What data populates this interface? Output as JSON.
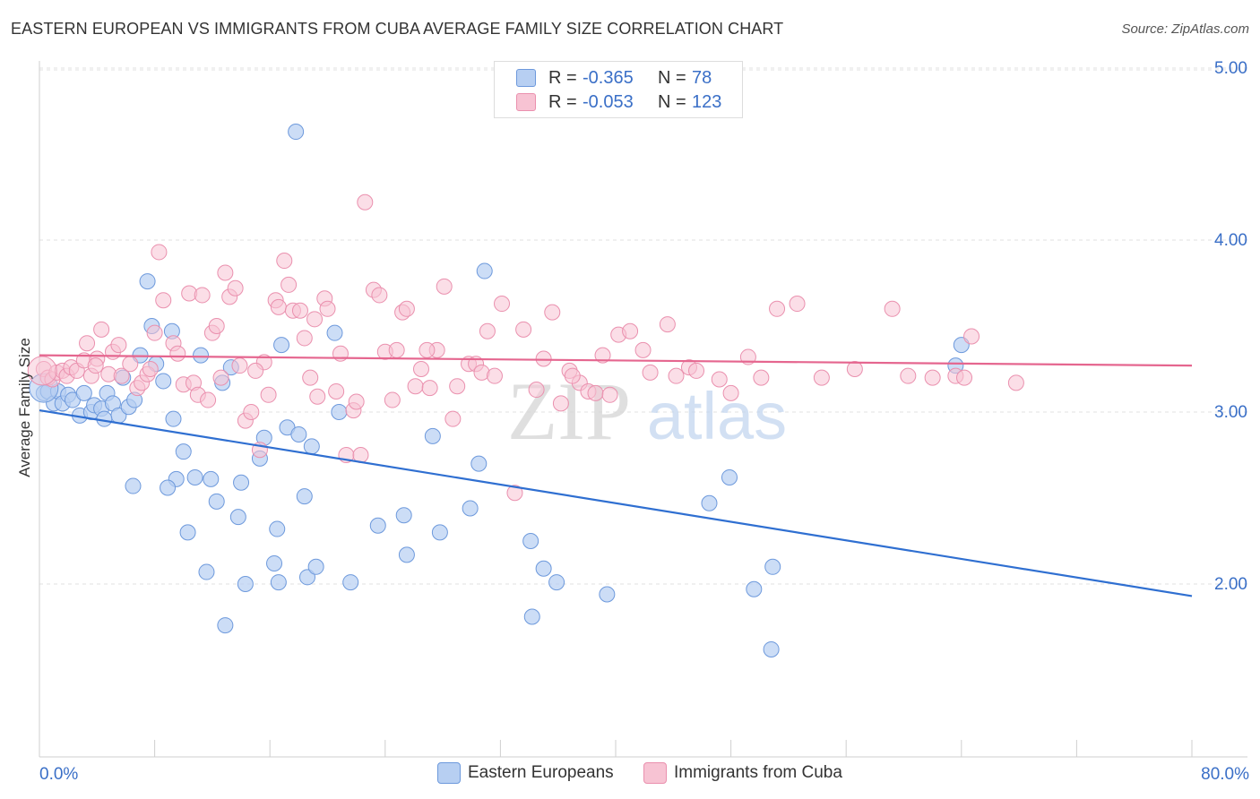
{
  "header": {
    "title": "EASTERN EUROPEAN VS IMMIGRANTS FROM CUBA AVERAGE FAMILY SIZE CORRELATION CHART",
    "source": "Source: ZipAtlas.com"
  },
  "watermark": {
    "zip": "ZIP",
    "atlas": "atlas"
  },
  "legend": {
    "rows": [
      {
        "r_label": "R =",
        "r_value": "-0.365",
        "n_label": "N =",
        "n_value": "78"
      },
      {
        "r_label": "R =",
        "r_value": "-0.053",
        "n_label": "N =",
        "n_value": "123"
      }
    ]
  },
  "bottom_legend": {
    "eastern": "Eastern Europeans",
    "cuba": "Immigrants from Cuba"
  },
  "chart_data": {
    "type": "scatter",
    "title": "EASTERN EUROPEAN VS IMMIGRANTS FROM CUBA AVERAGE FAMILY SIZE CORRELATION CHART",
    "ylabel": "Average Family Size",
    "xlim": [
      0,
      80
    ],
    "ylim": [
      1.0,
      5.1
    ],
    "x_tick_labels": [
      "0.0%",
      "80.0%"
    ],
    "y_ticks": [
      2.0,
      3.0,
      4.0,
      5.0
    ],
    "y_tick_labels": [
      "2.00",
      "3.00",
      "4.00",
      "5.00"
    ],
    "grid": true,
    "legend_position": "top-center",
    "colors": {
      "eastern_fill": "#b7cff2",
      "eastern_stroke": "#6d99dc",
      "eastern_line": "#2f6fd1",
      "cuba_fill": "#f7c3d3",
      "cuba_stroke": "#ea90ae",
      "cuba_line": "#e5668f",
      "tick_label": "#3a6fc7"
    },
    "series": [
      {
        "name": "Eastern Europeans",
        "r": -0.365,
        "n": 78,
        "trend": {
          "x": [
            0,
            80
          ],
          "y": [
            3.01,
            1.93
          ]
        },
        "points": [
          [
            0.3,
            3.11
          ],
          [
            0.6,
            3.12
          ],
          [
            1.0,
            3.05
          ],
          [
            1.3,
            3.12
          ],
          [
            1.6,
            3.05
          ],
          [
            2.0,
            3.1
          ],
          [
            2.3,
            3.07
          ],
          [
            2.8,
            2.98
          ],
          [
            3.1,
            3.11
          ],
          [
            3.6,
            3.0
          ],
          [
            3.8,
            3.04
          ],
          [
            4.3,
            3.02
          ],
          [
            4.7,
            3.11
          ],
          [
            5.1,
            3.05
          ],
          [
            5.5,
            2.98
          ],
          [
            5.8,
            3.2
          ],
          [
            6.2,
            3.03
          ],
          [
            6.6,
            3.07
          ],
          [
            7.0,
            3.33
          ],
          [
            7.5,
            3.76
          ],
          [
            7.8,
            3.5
          ],
          [
            8.1,
            3.28
          ],
          [
            8.6,
            3.18
          ],
          [
            9.2,
            3.47
          ],
          [
            9.5,
            2.61
          ],
          [
            10.0,
            2.77
          ],
          [
            10.3,
            2.3
          ],
          [
            10.8,
            2.62
          ],
          [
            11.2,
            3.33
          ],
          [
            11.6,
            2.07
          ],
          [
            11.9,
            2.61
          ],
          [
            12.3,
            2.48
          ],
          [
            12.7,
            3.17
          ],
          [
            12.9,
            1.76
          ],
          [
            13.3,
            3.26
          ],
          [
            13.8,
            2.39
          ],
          [
            14.0,
            2.59
          ],
          [
            14.3,
            2.0
          ],
          [
            15.3,
            2.73
          ],
          [
            15.6,
            2.85
          ],
          [
            16.3,
            2.12
          ],
          [
            16.6,
            2.01
          ],
          [
            16.8,
            3.39
          ],
          [
            17.2,
            2.91
          ],
          [
            17.8,
            4.63
          ],
          [
            18.0,
            2.87
          ],
          [
            18.6,
            2.04
          ],
          [
            18.9,
            2.8
          ],
          [
            19.2,
            2.1
          ],
          [
            20.5,
            3.46
          ],
          [
            20.8,
            3.0
          ],
          [
            21.6,
            2.01
          ],
          [
            23.5,
            2.34
          ],
          [
            25.3,
            2.4
          ],
          [
            25.5,
            2.17
          ],
          [
            27.3,
            2.86
          ],
          [
            27.8,
            2.3
          ],
          [
            29.9,
            2.44
          ],
          [
            30.5,
            2.7
          ],
          [
            30.9,
            3.82
          ],
          [
            34.1,
            2.25
          ],
          [
            34.2,
            1.81
          ],
          [
            35.0,
            2.09
          ],
          [
            35.9,
            2.01
          ],
          [
            39.4,
            1.94
          ],
          [
            46.5,
            2.47
          ],
          [
            47.9,
            2.62
          ],
          [
            49.6,
            1.97
          ],
          [
            50.8,
            1.62
          ],
          [
            50.9,
            2.1
          ],
          [
            63.6,
            3.27
          ],
          [
            64.0,
            3.39
          ],
          [
            6.5,
            2.57
          ],
          [
            8.9,
            2.56
          ],
          [
            16.5,
            2.32
          ],
          [
            18.4,
            2.51
          ],
          [
            4.5,
            2.96
          ],
          [
            9.3,
            2.96
          ]
        ]
      },
      {
        "name": "Immigrants from Cuba",
        "r": -0.053,
        "n": 123,
        "trend": {
          "x": [
            0,
            80
          ],
          "y": [
            3.33,
            3.27
          ]
        },
        "points": [
          [
            0.3,
            3.25
          ],
          [
            0.6,
            3.2
          ],
          [
            0.9,
            3.19
          ],
          [
            1.2,
            3.23
          ],
          [
            1.6,
            3.24
          ],
          [
            1.9,
            3.21
          ],
          [
            2.2,
            3.26
          ],
          [
            2.6,
            3.24
          ],
          [
            3.1,
            3.3
          ],
          [
            3.3,
            3.4
          ],
          [
            3.6,
            3.21
          ],
          [
            4.0,
            3.31
          ],
          [
            4.3,
            3.48
          ],
          [
            4.8,
            3.22
          ],
          [
            5.1,
            3.35
          ],
          [
            5.5,
            3.39
          ],
          [
            5.7,
            3.21
          ],
          [
            6.3,
            3.28
          ],
          [
            6.8,
            3.14
          ],
          [
            7.1,
            3.17
          ],
          [
            7.5,
            3.22
          ],
          [
            8.0,
            3.46
          ],
          [
            8.3,
            3.93
          ],
          [
            8.6,
            3.65
          ],
          [
            9.3,
            3.4
          ],
          [
            9.6,
            3.34
          ],
          [
            10.0,
            3.16
          ],
          [
            10.4,
            3.69
          ],
          [
            10.7,
            3.17
          ],
          [
            11.0,
            3.1
          ],
          [
            11.3,
            3.68
          ],
          [
            11.7,
            3.07
          ],
          [
            12.0,
            3.46
          ],
          [
            12.3,
            3.5
          ],
          [
            12.9,
            3.81
          ],
          [
            13.2,
            3.67
          ],
          [
            13.6,
            3.72
          ],
          [
            13.9,
            3.27
          ],
          [
            14.3,
            2.95
          ],
          [
            14.7,
            3.0
          ],
          [
            15.3,
            2.78
          ],
          [
            15.6,
            3.29
          ],
          [
            15.9,
            3.1
          ],
          [
            16.4,
            3.65
          ],
          [
            16.6,
            3.61
          ],
          [
            17.0,
            3.88
          ],
          [
            17.3,
            3.74
          ],
          [
            17.6,
            3.59
          ],
          [
            18.1,
            3.59
          ],
          [
            18.4,
            3.43
          ],
          [
            18.8,
            3.2
          ],
          [
            19.1,
            3.54
          ],
          [
            19.3,
            3.09
          ],
          [
            19.8,
            3.66
          ],
          [
            20.0,
            3.6
          ],
          [
            20.6,
            3.12
          ],
          [
            20.9,
            3.34
          ],
          [
            21.3,
            2.75
          ],
          [
            21.8,
            3.01
          ],
          [
            22.3,
            2.75
          ],
          [
            22.6,
            4.22
          ],
          [
            23.2,
            3.71
          ],
          [
            23.6,
            3.68
          ],
          [
            24.0,
            3.35
          ],
          [
            24.5,
            3.07
          ],
          [
            24.8,
            3.36
          ],
          [
            25.2,
            3.58
          ],
          [
            25.5,
            3.6
          ],
          [
            26.1,
            3.15
          ],
          [
            26.5,
            3.25
          ],
          [
            27.1,
            3.14
          ],
          [
            27.6,
            3.36
          ],
          [
            28.1,
            3.73
          ],
          [
            28.7,
            2.96
          ],
          [
            29.0,
            3.15
          ],
          [
            29.8,
            3.28
          ],
          [
            30.3,
            3.28
          ],
          [
            30.7,
            3.23
          ],
          [
            31.1,
            3.47
          ],
          [
            31.6,
            3.21
          ],
          [
            32.1,
            3.63
          ],
          [
            33.6,
            3.48
          ],
          [
            34.5,
            3.13
          ],
          [
            35.0,
            3.31
          ],
          [
            35.6,
            3.58
          ],
          [
            36.2,
            3.05
          ],
          [
            36.8,
            3.24
          ],
          [
            37.5,
            3.17
          ],
          [
            38.1,
            3.12
          ],
          [
            38.6,
            3.11
          ],
          [
            39.1,
            3.33
          ],
          [
            39.6,
            3.1
          ],
          [
            40.2,
            3.45
          ],
          [
            41.0,
            3.47
          ],
          [
            41.9,
            3.36
          ],
          [
            42.4,
            3.23
          ],
          [
            43.6,
            3.51
          ],
          [
            44.2,
            3.21
          ],
          [
            45.1,
            3.26
          ],
          [
            45.6,
            3.24
          ],
          [
            47.2,
            3.19
          ],
          [
            48.0,
            3.11
          ],
          [
            49.2,
            3.32
          ],
          [
            50.1,
            3.2
          ],
          [
            51.2,
            3.6
          ],
          [
            52.6,
            3.63
          ],
          [
            54.3,
            3.2
          ],
          [
            56.6,
            3.25
          ],
          [
            59.2,
            3.6
          ],
          [
            60.3,
            3.21
          ],
          [
            62.0,
            3.2
          ],
          [
            63.6,
            3.21
          ],
          [
            64.2,
            3.2
          ],
          [
            64.7,
            3.44
          ],
          [
            67.8,
            3.17
          ],
          [
            3.9,
            3.27
          ],
          [
            7.7,
            3.25
          ],
          [
            12.6,
            3.2
          ],
          [
            15.0,
            3.24
          ],
          [
            22.0,
            3.06
          ],
          [
            26.9,
            3.36
          ],
          [
            33.0,
            2.53
          ],
          [
            37.0,
            3.21
          ]
        ]
      }
    ]
  }
}
